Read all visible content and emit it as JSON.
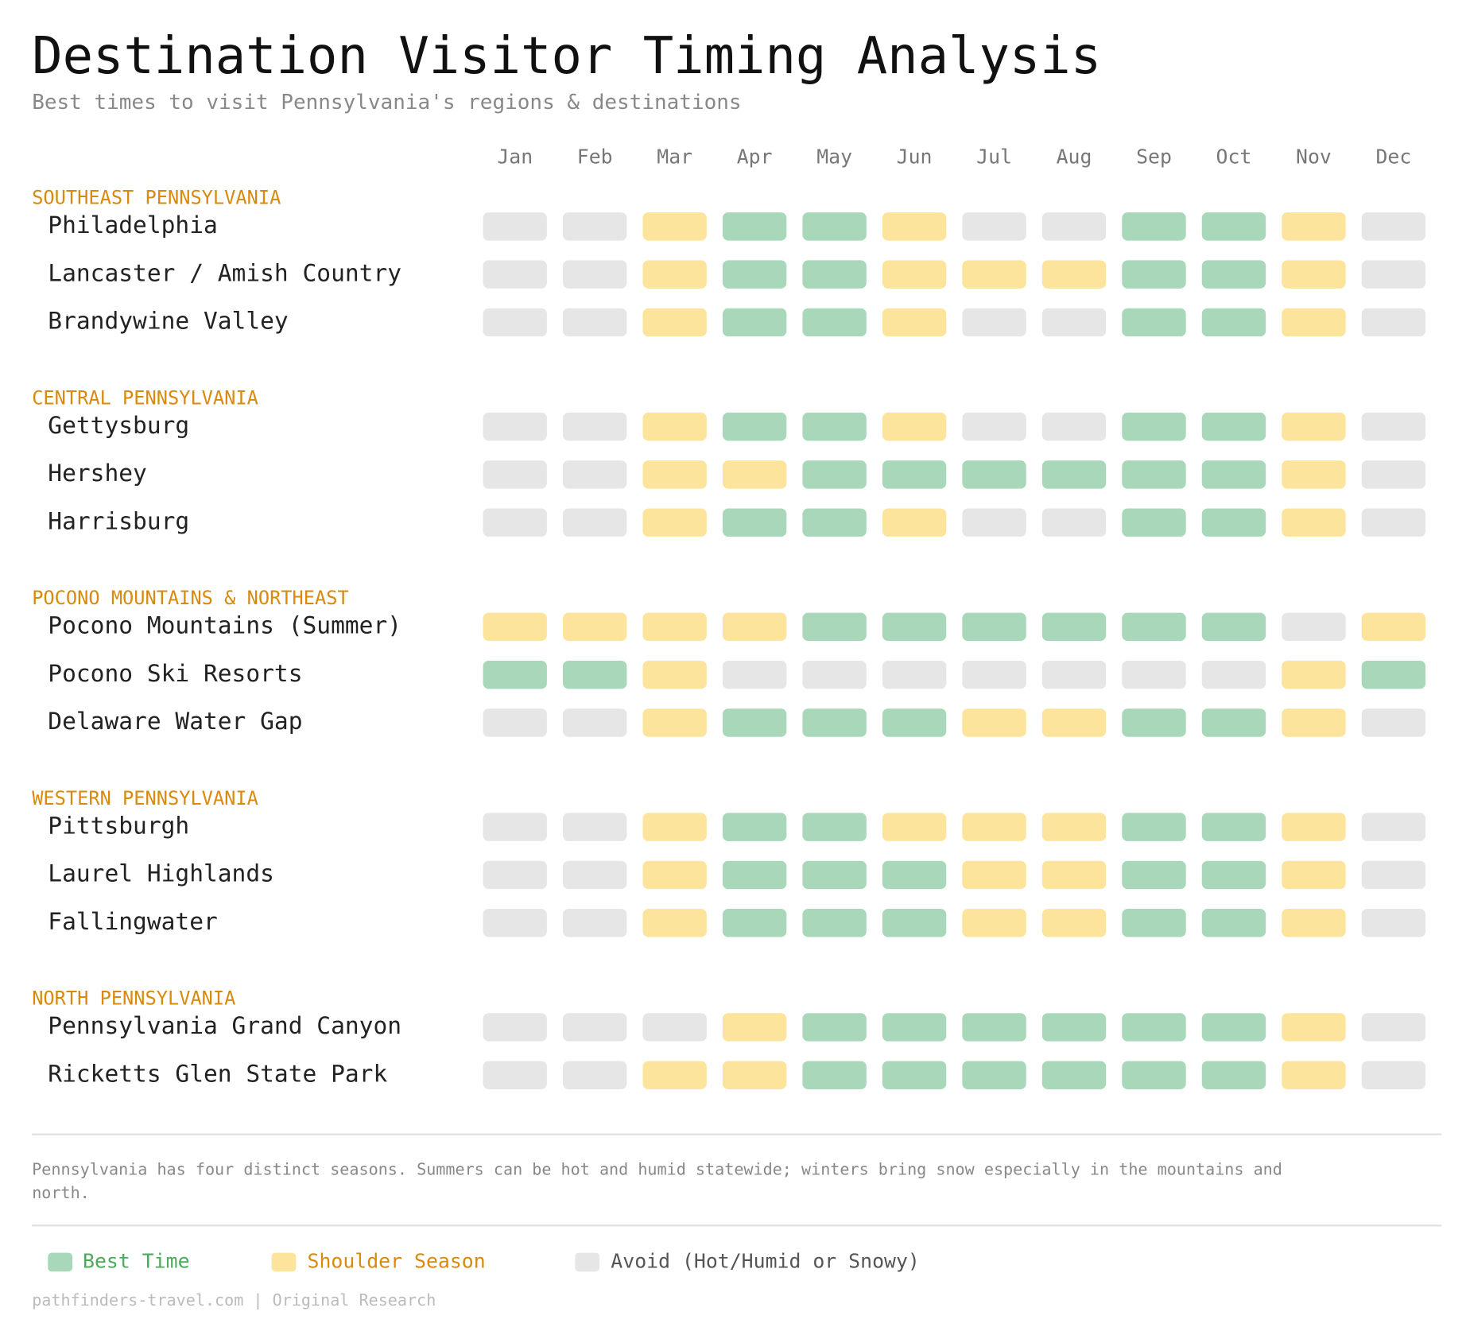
{
  "header": {
    "title": "Destination Visitor Timing Analysis",
    "subtitle": "Best times to visit Pennsylvania's regions & destinations"
  },
  "months": [
    "Jan",
    "Feb",
    "Mar",
    "Apr",
    "May",
    "Jun",
    "Jul",
    "Aug",
    "Sep",
    "Oct",
    "Nov",
    "Dec"
  ],
  "legend": [
    {
      "label": "Best Time",
      "color": "#a8d8b9",
      "text_color": "#4caa5a"
    },
    {
      "label": "Shoulder Season",
      "color": "#fce49c",
      "text_color": "#d98a0e"
    },
    {
      "label": "Avoid (Hot/Humid or Snowy)",
      "color": "#e6e6e6",
      "text_color": "#555555"
    }
  ],
  "regions": [
    {
      "name": "SOUTHEAST PENNSYLVANIA",
      "destinations": [
        {
          "name": "Philadelphia",
          "status": [
            2,
            2,
            1,
            0,
            0,
            1,
            2,
            2,
            0,
            0,
            1,
            2
          ]
        },
        {
          "name": "Lancaster / Amish Country",
          "status": [
            2,
            2,
            1,
            0,
            0,
            1,
            1,
            1,
            0,
            0,
            1,
            2
          ]
        },
        {
          "name": "Brandywine Valley",
          "status": [
            2,
            2,
            1,
            0,
            0,
            1,
            2,
            2,
            0,
            0,
            1,
            2
          ]
        }
      ]
    },
    {
      "name": "CENTRAL PENNSYLVANIA",
      "destinations": [
        {
          "name": "Gettysburg",
          "status": [
            2,
            2,
            1,
            0,
            0,
            1,
            2,
            2,
            0,
            0,
            1,
            2
          ]
        },
        {
          "name": "Hershey",
          "status": [
            2,
            2,
            1,
            1,
            0,
            0,
            0,
            0,
            0,
            0,
            1,
            2
          ]
        },
        {
          "name": "Harrisburg",
          "status": [
            2,
            2,
            1,
            0,
            0,
            1,
            2,
            2,
            0,
            0,
            1,
            2
          ]
        }
      ]
    },
    {
      "name": "POCONO MOUNTAINS & NORTHEAST",
      "destinations": [
        {
          "name": "Pocono Mountains (Summer)",
          "status": [
            1,
            1,
            1,
            1,
            0,
            0,
            0,
            0,
            0,
            0,
            2,
            1
          ]
        },
        {
          "name": "Pocono Ski Resorts",
          "status": [
            0,
            0,
            1,
            2,
            2,
            2,
            2,
            2,
            2,
            2,
            1,
            0
          ]
        },
        {
          "name": "Delaware Water Gap",
          "status": [
            2,
            2,
            1,
            0,
            0,
            0,
            1,
            1,
            0,
            0,
            1,
            2
          ]
        }
      ]
    },
    {
      "name": "WESTERN PENNSYLVANIA",
      "destinations": [
        {
          "name": "Pittsburgh",
          "status": [
            2,
            2,
            1,
            0,
            0,
            1,
            1,
            1,
            0,
            0,
            1,
            2
          ]
        },
        {
          "name": "Laurel Highlands",
          "status": [
            2,
            2,
            1,
            0,
            0,
            0,
            1,
            1,
            0,
            0,
            1,
            2
          ]
        },
        {
          "name": "Fallingwater",
          "status": [
            2,
            2,
            1,
            0,
            0,
            0,
            1,
            1,
            0,
            0,
            1,
            2
          ]
        }
      ]
    },
    {
      "name": "NORTH PENNSYLVANIA",
      "destinations": [
        {
          "name": "Pennsylvania Grand Canyon",
          "status": [
            2,
            2,
            2,
            1,
            0,
            0,
            0,
            0,
            0,
            0,
            1,
            2
          ]
        },
        {
          "name": "Ricketts Glen State Park",
          "status": [
            2,
            2,
            1,
            1,
            0,
            0,
            0,
            0,
            0,
            0,
            1,
            2
          ]
        }
      ]
    }
  ],
  "footnote": "Pennsylvania has four distinct seasons. Summers can be hot and humid statewide; winters bring snow especially in the mountains and north.",
  "source": "pathfinders-travel.com | Original Research"
}
